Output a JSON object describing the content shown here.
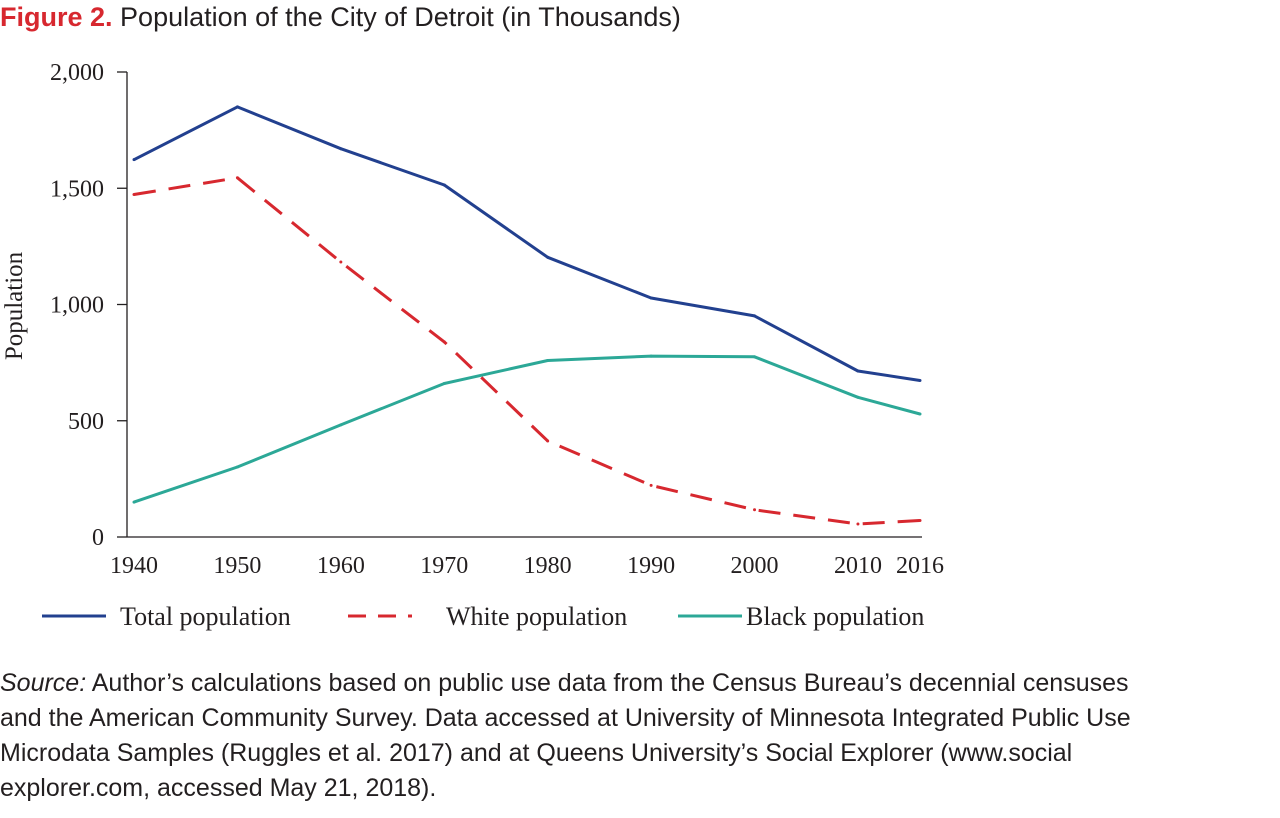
{
  "figure": {
    "label": "Figure 2.",
    "title": "Population of the City of Detroit (in Thousands)"
  },
  "source": {
    "label": "Source:",
    "line1": "Author’s calculations based on public use data from the Census Bureau’s decennial censuses",
    "line2": "and the American Community Survey. Data accessed at University of Minnesota Integrated Public Use",
    "line3": "Microdata Samples (Ruggles et al. 2017) and at Queens University’s Social Explorer (www.social",
    "line4": "explorer.com, accessed May 21, 2018)."
  },
  "chart_data": {
    "type": "line",
    "title": "Population of the City of Detroit (in Thousands)",
    "xlabel": "",
    "ylabel": "Population",
    "x": [
      1940,
      1950,
      1960,
      1970,
      1980,
      1990,
      2000,
      2010,
      2016
    ],
    "xticks": [
      "1940",
      "1950",
      "1960",
      "1970",
      "1980",
      "1990",
      "2000",
      "2010",
      "2016"
    ],
    "yticks": [
      "0",
      "500",
      "1,000",
      "1,500",
      "2,000"
    ],
    "ytick_values": [
      0,
      500,
      1000,
      1500,
      2000
    ],
    "xlim": [
      1940,
      2016
    ],
    "ylim": [
      0,
      2000
    ],
    "grid": false,
    "legend_position": "bottom",
    "series": [
      {
        "name": "Total population",
        "color": "#22408f",
        "dash": "solid",
        "values": [
          1623,
          1850,
          1670,
          1514,
          1203,
          1028,
          951,
          714,
          673
        ]
      },
      {
        "name": "White population",
        "color": "#d7282f",
        "dash": "dashed",
        "values": [
          1473,
          1545,
          1183,
          839,
          413,
          222,
          117,
          56,
          71
        ]
      },
      {
        "name": "Black population",
        "color": "#2ca897",
        "dash": "solid",
        "values": [
          150,
          301,
          482,
          660,
          759,
          778,
          775,
          601,
          529
        ]
      }
    ]
  }
}
